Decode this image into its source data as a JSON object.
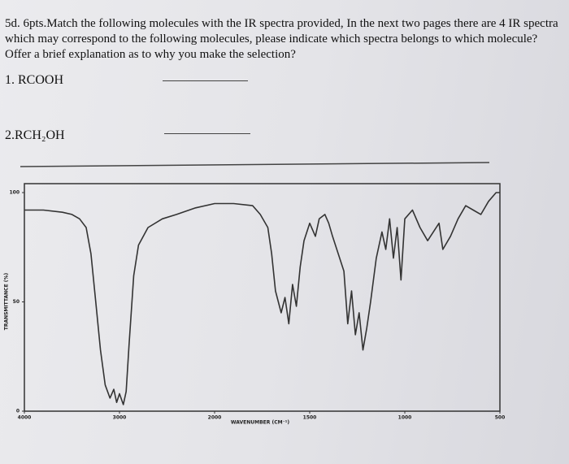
{
  "question": {
    "text": "5d. 6pts.Match the following molecules with the IR spectra provided, In the next two pages there are 4 IR spectra which may correspond to the following molecules, please indicate which spectra belongs to which molecule? Offer a brief explanation as to why you make the selection?",
    "items": [
      "1. RCOOH",
      "2.RCH₂OH"
    ]
  },
  "chart_data": {
    "type": "line",
    "ylabel": "TRANSMITTANCE (%)",
    "xlabel": "WAVENUMBER (CM⁻¹)",
    "x": [
      4000,
      3800,
      3600,
      3500,
      3420,
      3350,
      3300,
      3250,
      3200,
      3150,
      3100,
      3060,
      3030,
      3000,
      2960,
      2930,
      2900,
      2850,
      2800,
      2700,
      2550,
      2400,
      2200,
      2000,
      1900,
      1800,
      1760,
      1720,
      1700,
      1680,
      1650,
      1630,
      1610,
      1590,
      1570,
      1550,
      1530,
      1500,
      1470,
      1450,
      1420,
      1400,
      1380,
      1350,
      1320,
      1300,
      1280,
      1260,
      1240,
      1220,
      1200,
      1180,
      1150,
      1120,
      1100,
      1080,
      1060,
      1040,
      1020,
      1000,
      960,
      920,
      880,
      850,
      820,
      800,
      760,
      720,
      680,
      640,
      600,
      560,
      520,
      500
    ],
    "values": [
      92,
      92,
      91,
      90,
      88,
      84,
      72,
      50,
      28,
      12,
      6,
      10,
      4,
      8,
      3,
      9,
      30,
      62,
      76,
      84,
      88,
      90,
      93,
      95,
      95,
      94,
      90,
      84,
      72,
      55,
      45,
      52,
      40,
      58,
      48,
      66,
      78,
      86,
      80,
      88,
      90,
      86,
      80,
      72,
      64,
      40,
      55,
      35,
      45,
      28,
      38,
      50,
      70,
      82,
      74,
      88,
      70,
      84,
      60,
      88,
      92,
      84,
      78,
      82,
      86,
      74,
      80,
      88,
      94,
      92,
      90,
      96,
      100,
      100
    ],
    "color": "#333333",
    "xlim": [
      4000,
      500
    ],
    "ylim": [
      0,
      100
    ],
    "xticks": [
      4000,
      3000,
      2000,
      1500,
      1000,
      500
    ],
    "yticks": [
      0,
      50,
      100
    ]
  }
}
